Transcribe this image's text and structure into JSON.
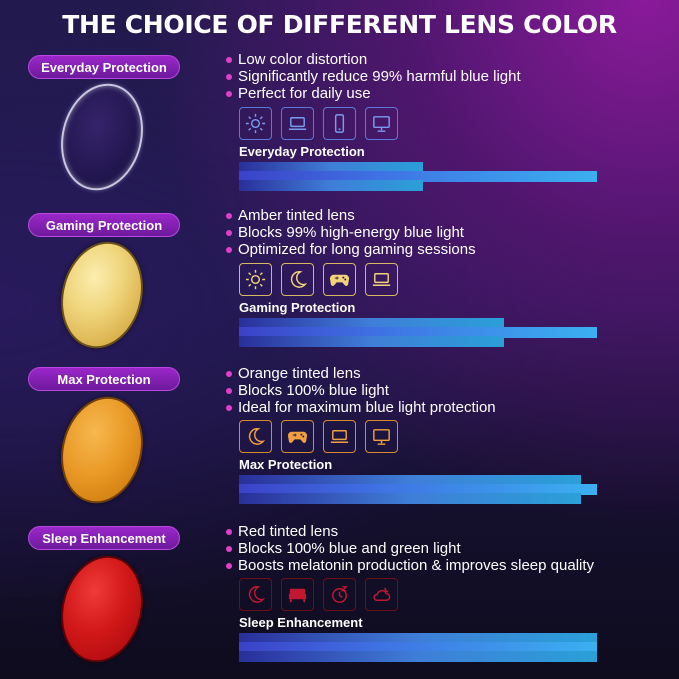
{
  "title": "THE CHOICE OF DIFFERENT LENS COLOR",
  "sections": [
    {
      "name": "Everyday Protection",
      "bullets": [
        "Low color distortion",
        "Significantly reduce 99% harmful blue light",
        "Perfect for daily use"
      ],
      "icons": [
        "sun-icon",
        "laptop-icon",
        "phone-icon",
        "monitor-icon"
      ],
      "icon_color": "#7a9cf0",
      "lens_color": "#2a1b58"
    },
    {
      "name": "Gaming Protection",
      "bullets": [
        "Amber tinted lens",
        "Blocks 99% high-energy blue light",
        "Optimized for long gaming sessions"
      ],
      "icons": [
        "sun-icon",
        "moon-icon",
        "gamepad-icon",
        "laptop-icon"
      ],
      "icon_color": "#f2d37a",
      "lens_color": "#e8c860"
    },
    {
      "name": "Max Protection",
      "bullets": [
        "Orange tinted lens",
        "Blocks 100% blue light",
        "Ideal for maximum blue light protection"
      ],
      "icons": [
        "moon-icon",
        "gamepad-icon",
        "laptop-icon",
        "monitor-icon"
      ],
      "icon_color": "#f0a040",
      "lens_color": "#e8921c"
    },
    {
      "name": "Sleep Enhancement",
      "bullets": [
        "Red tinted lens",
        "Blocks 100% blue and green light",
        "Boosts melatonin production & improves sleep quality"
      ],
      "icons": [
        "moon-icon",
        "bed-icon",
        "sleep-clock-icon",
        "cloud-moon-icon"
      ],
      "icon_color": "#c01830",
      "lens_color": "#c8101c"
    }
  ]
}
